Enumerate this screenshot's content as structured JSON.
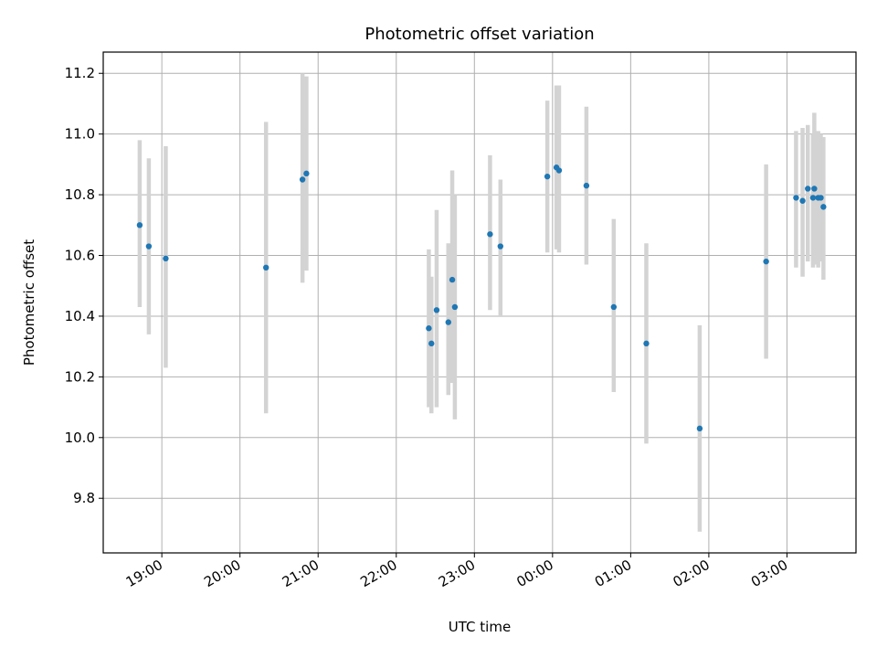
{
  "chart_data": {
    "type": "scatter",
    "title": "Photometric offset variation",
    "xlabel": "UTC time",
    "ylabel": "Photometric offset",
    "x_ticks": [
      "19:00",
      "20:00",
      "21:00",
      "22:00",
      "23:00",
      "00:00",
      "01:00",
      "02:00",
      "03:00"
    ],
    "y_ticks": [
      "9.8",
      "10.0",
      "10.2",
      "10.4",
      "10.6",
      "10.8",
      "11.0",
      "11.2"
    ],
    "x_range": [
      "18:15",
      "03:53"
    ],
    "ylim": [
      9.62,
      11.27
    ],
    "grid": true,
    "colors": {
      "point": "#1f77b4",
      "errorbar": "#d3d3d3",
      "grid": "#b0b0b0"
    },
    "points": [
      {
        "t": "18:43",
        "y": 10.7,
        "ylo": 10.43,
        "yhi": 10.98
      },
      {
        "t": "18:50",
        "y": 10.63,
        "ylo": 10.34,
        "yhi": 10.92
      },
      {
        "t": "19:03",
        "y": 10.59,
        "ylo": 10.23,
        "yhi": 10.96
      },
      {
        "t": "20:20",
        "y": 10.56,
        "ylo": 10.08,
        "yhi": 11.04
      },
      {
        "t": "20:48",
        "y": 10.85,
        "ylo": 10.51,
        "yhi": 11.2
      },
      {
        "t": "20:51",
        "y": 10.87,
        "ylo": 10.55,
        "yhi": 11.19
      },
      {
        "t": "22:25",
        "y": 10.36,
        "ylo": 10.1,
        "yhi": 10.62
      },
      {
        "t": "22:27",
        "y": 10.31,
        "ylo": 10.08,
        "yhi": 10.53
      },
      {
        "t": "22:31",
        "y": 10.42,
        "ylo": 10.1,
        "yhi": 10.75
      },
      {
        "t": "22:40",
        "y": 10.38,
        "ylo": 10.14,
        "yhi": 10.64
      },
      {
        "t": "22:43",
        "y": 10.52,
        "ylo": 10.18,
        "yhi": 10.88
      },
      {
        "t": "22:45",
        "y": 10.43,
        "ylo": 10.06,
        "yhi": 10.8
      },
      {
        "t": "23:12",
        "y": 10.67,
        "ylo": 10.42,
        "yhi": 10.93
      },
      {
        "t": "23:20",
        "y": 10.63,
        "ylo": 10.4,
        "yhi": 10.85
      },
      {
        "t": "23:56",
        "y": 10.86,
        "ylo": 10.61,
        "yhi": 11.11
      },
      {
        "t": "00:03",
        "y": 10.89,
        "ylo": 10.62,
        "yhi": 11.16
      },
      {
        "t": "00:05",
        "y": 10.88,
        "ylo": 10.61,
        "yhi": 11.16
      },
      {
        "t": "00:26",
        "y": 10.83,
        "ylo": 10.57,
        "yhi": 11.09
      },
      {
        "t": "00:47",
        "y": 10.43,
        "ylo": 10.15,
        "yhi": 10.72
      },
      {
        "t": "01:12",
        "y": 10.31,
        "ylo": 9.98,
        "yhi": 10.64
      },
      {
        "t": "01:53",
        "y": 10.03,
        "ylo": 9.69,
        "yhi": 10.37
      },
      {
        "t": "02:44",
        "y": 10.58,
        "ylo": 10.26,
        "yhi": 10.9
      },
      {
        "t": "03:07",
        "y": 10.79,
        "ylo": 10.56,
        "yhi": 11.01
      },
      {
        "t": "03:12",
        "y": 10.78,
        "ylo": 10.53,
        "yhi": 11.02
      },
      {
        "t": "03:16",
        "y": 10.82,
        "ylo": 10.58,
        "yhi": 11.03
      },
      {
        "t": "03:20",
        "y": 10.79,
        "ylo": 10.56,
        "yhi": 11.0
      },
      {
        "t": "03:21",
        "y": 10.82,
        "ylo": 10.57,
        "yhi": 11.07
      },
      {
        "t": "03:24",
        "y": 10.79,
        "ylo": 10.56,
        "yhi": 11.01
      },
      {
        "t": "03:26",
        "y": 10.79,
        "ylo": 10.58,
        "yhi": 11.0
      },
      {
        "t": "03:28",
        "y": 10.76,
        "ylo": 10.52,
        "yhi": 10.99
      }
    ]
  }
}
